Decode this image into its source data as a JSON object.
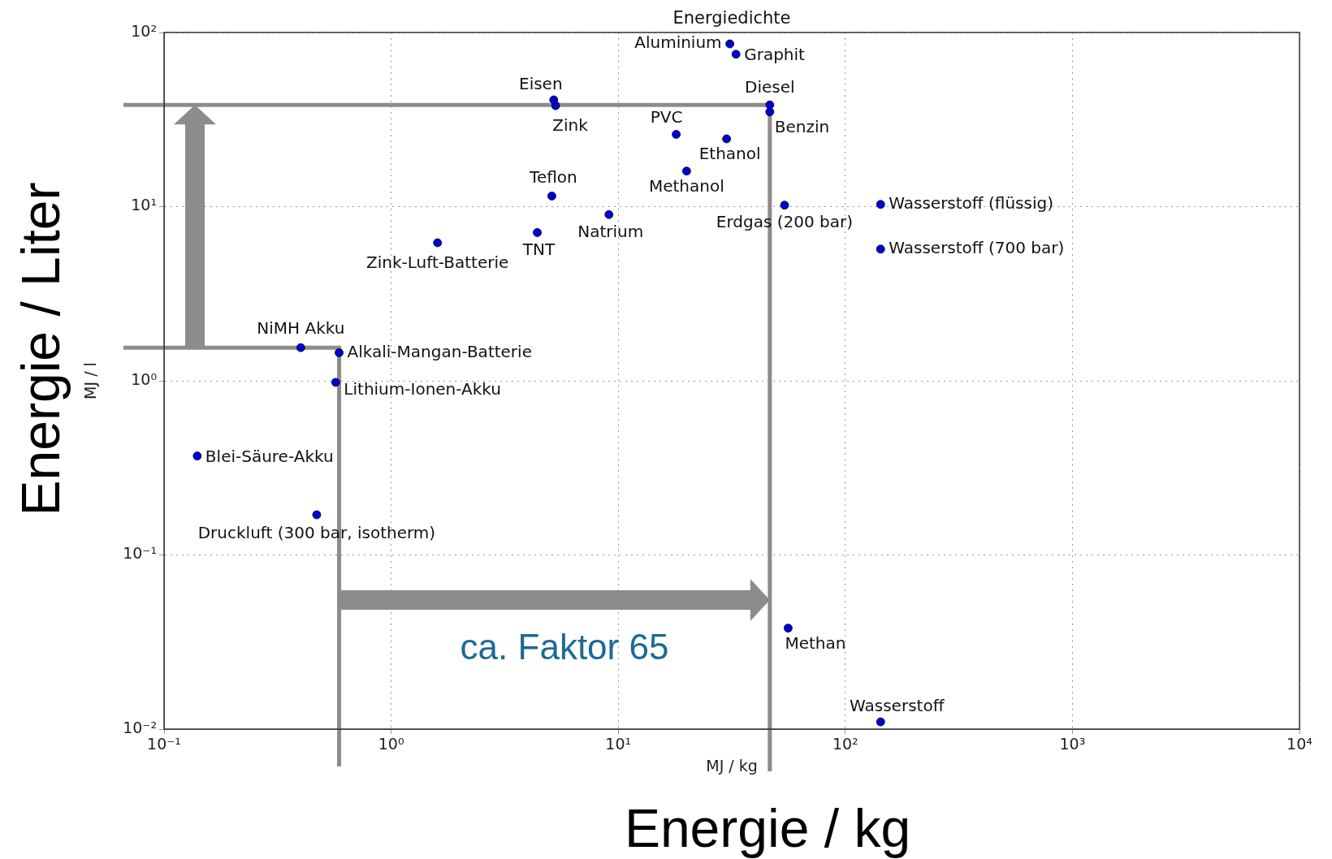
{
  "chart_data": {
    "type": "scatter",
    "title": "Energiedichte",
    "xlabel": "MJ / kg",
    "ylabel": "MJ / l",
    "annotations": [
      "Energie / Liter",
      "Energie / kg",
      "ca. Faktor 65"
    ],
    "log": "xy",
    "grid": true,
    "legend": false,
    "marker": "circle",
    "xlim": [
      0.1,
      10000
    ],
    "ylim": [
      0.01,
      100
    ],
    "xticks": [
      {
        "value": 0.1,
        "label": "10⁻¹"
      },
      {
        "value": 1,
        "label": "10⁰"
      },
      {
        "value": 10,
        "label": "10¹"
      },
      {
        "value": 100,
        "label": "10²"
      },
      {
        "value": 1000,
        "label": "10³"
      },
      {
        "value": 10000,
        "label": "10⁴"
      }
    ],
    "yticks": [
      {
        "value": 0.01,
        "label": "10⁻²"
      },
      {
        "value": 0.1,
        "label": "10⁻¹"
      },
      {
        "value": 1,
        "label": "10⁰"
      },
      {
        "value": 10,
        "label": "10¹"
      },
      {
        "value": 100,
        "label": "10²"
      }
    ],
    "series": [
      {
        "name": "Aluminium",
        "color": "#0000cc",
        "x": [
          31
        ],
        "values": [
          86
        ]
      },
      {
        "name": "Graphit",
        "color": "#0000cc",
        "x": [
          33
        ],
        "values": [
          75
        ]
      },
      {
        "name": "Eisen",
        "color": "#0000cc",
        "x": [
          5.2
        ],
        "values": [
          41
        ]
      },
      {
        "name": "Zink",
        "color": "#0000cc",
        "x": [
          5.3
        ],
        "values": [
          38
        ]
      },
      {
        "name": "Diesel",
        "color": "#0000cc",
        "x": [
          46.5
        ],
        "values": [
          38.4
        ]
      },
      {
        "name": "Benzin",
        "color": "#0000cc",
        "x": [
          46.5
        ],
        "values": [
          35
        ]
      },
      {
        "name": "PVC",
        "color": "#0000cc",
        "x": [
          18
        ],
        "values": [
          26
        ]
      },
      {
        "name": "Ethanol",
        "color": "#0000cc",
        "x": [
          30
        ],
        "values": [
          24.5
        ]
      },
      {
        "name": "Methanol",
        "color": "#0000cc",
        "x": [
          20
        ],
        "values": [
          16
        ]
      },
      {
        "name": "Teflon",
        "color": "#0000cc",
        "x": [
          5.1
        ],
        "values": [
          11.5
        ]
      },
      {
        "name": "Natrium",
        "color": "#0000cc",
        "x": [
          9.1
        ],
        "values": [
          9
        ]
      },
      {
        "name": "Erdgas (200 bar)",
        "color": "#0000cc",
        "x": [
          54
        ],
        "values": [
          10.2
        ]
      },
      {
        "name": "Wasserstoff (flüssig)",
        "color": "#0000cc",
        "x": [
          143
        ],
        "values": [
          10.3
        ]
      },
      {
        "name": "Wasserstoff (700 bar)",
        "color": "#0000cc",
        "x": [
          143
        ],
        "values": [
          5.7
        ]
      },
      {
        "name": "TNT",
        "color": "#0000cc",
        "x": [
          4.4
        ],
        "values": [
          7.1
        ]
      },
      {
        "name": "Zink-Luft-Batterie",
        "color": "#0000cc",
        "x": [
          1.6
        ],
        "values": [
          6.2
        ]
      },
      {
        "name": "NiMH Akku",
        "color": "#0000cc",
        "x": [
          0.4
        ],
        "values": [
          1.55
        ]
      },
      {
        "name": "Alkali-Mangan-Batterie",
        "color": "#0000cc",
        "x": [
          0.59
        ],
        "values": [
          1.45
        ]
      },
      {
        "name": "Lithium-Ionen-Akku",
        "color": "#0000cc",
        "x": [
          0.57
        ],
        "values": [
          0.98
        ]
      },
      {
        "name": "Blei-Säure-Akku",
        "color": "#0000cc",
        "x": [
          0.14
        ],
        "values": [
          0.37
        ]
      },
      {
        "name": "Druckluft (300 bar, isotherm)",
        "color": "#0000cc",
        "x": [
          0.47
        ],
        "values": [
          0.17
        ]
      },
      {
        "name": "Methan",
        "color": "#0000cc",
        "x": [
          56
        ],
        "values": [
          0.038
        ]
      },
      {
        "name": "Wasserstoff",
        "color": "#0000cc",
        "x": [
          143
        ],
        "values": [
          0.011
        ]
      }
    ]
  }
}
